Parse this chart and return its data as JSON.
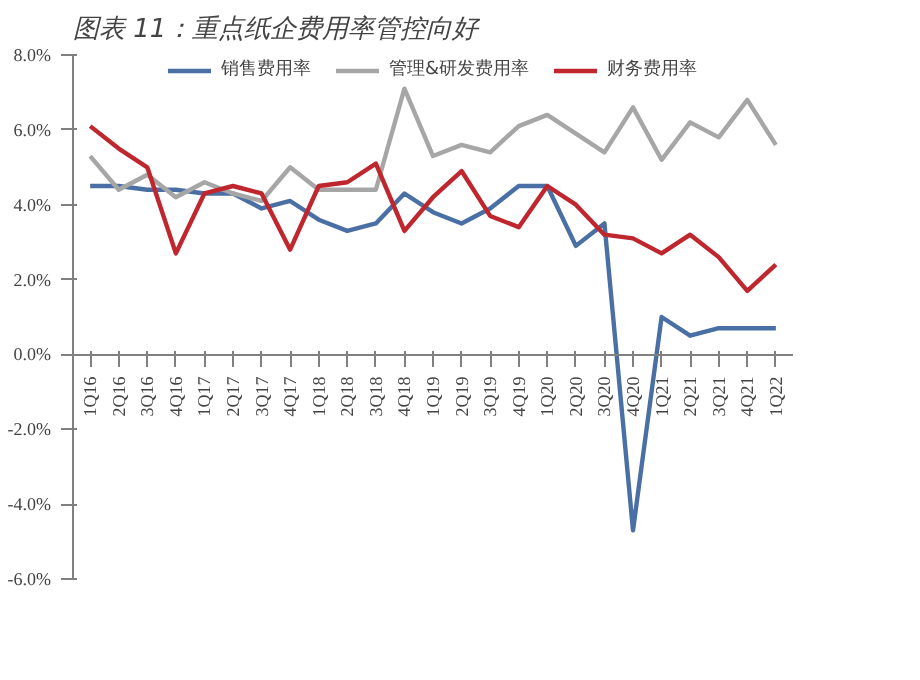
{
  "chart_data": {
    "type": "line",
    "title": "图表 11：重点纸企费用率管控向好",
    "categories": [
      "1Q16",
      "2Q16",
      "3Q16",
      "4Q16",
      "1Q17",
      "2Q17",
      "3Q17",
      "4Q17",
      "1Q18",
      "2Q18",
      "3Q18",
      "4Q18",
      "1Q19",
      "2Q19",
      "3Q19",
      "4Q19",
      "1Q20",
      "2Q20",
      "3Q20",
      "4Q20",
      "1Q21",
      "2Q21",
      "3Q21",
      "4Q21",
      "1Q22"
    ],
    "series": [
      {
        "name": "销售费用率",
        "color": "#4a6fa5",
        "values": [
          4.5,
          4.5,
          4.4,
          4.4,
          4.3,
          4.3,
          3.9,
          4.1,
          3.6,
          3.3,
          3.5,
          4.3,
          3.8,
          3.5,
          3.9,
          4.5,
          4.5,
          2.9,
          3.5,
          -4.7,
          1.0,
          0.5,
          0.7,
          0.7,
          0.7
        ]
      },
      {
        "name": "管理&研发费用率",
        "color": "#a6a6a6",
        "values": [
          5.3,
          4.4,
          4.8,
          4.2,
          4.6,
          4.3,
          4.1,
          5.0,
          4.4,
          4.4,
          4.4,
          7.1,
          5.3,
          5.6,
          5.4,
          6.1,
          6.4,
          5.9,
          5.4,
          6.6,
          5.2,
          6.2,
          5.8,
          6.8,
          5.6
        ]
      },
      {
        "name": "财务费用率",
        "color": "#c0262d",
        "values": [
          6.1,
          5.5,
          5.0,
          2.7,
          4.3,
          4.5,
          4.3,
          2.8,
          4.5,
          4.6,
          5.1,
          3.3,
          4.2,
          4.9,
          3.7,
          3.4,
          4.5,
          4.0,
          3.2,
          3.1,
          2.7,
          3.2,
          2.6,
          1.7,
          2.4
        ]
      }
    ],
    "ylim": [
      -6,
      8
    ],
    "yticks": [
      {
        "value": -6,
        "label": "-6.0%"
      },
      {
        "value": -4,
        "label": "-4.0%"
      },
      {
        "value": -2,
        "label": "-2.0%"
      },
      {
        "value": 0,
        "label": "0.0%"
      },
      {
        "value": 2,
        "label": "2.0%"
      },
      {
        "value": 4,
        "label": "4.0%"
      },
      {
        "value": 6,
        "label": "6.0%"
      },
      {
        "value": 8,
        "label": "8.0%"
      }
    ],
    "grid": false,
    "legend": "top",
    "marker": "none",
    "line_style": "solid"
  }
}
